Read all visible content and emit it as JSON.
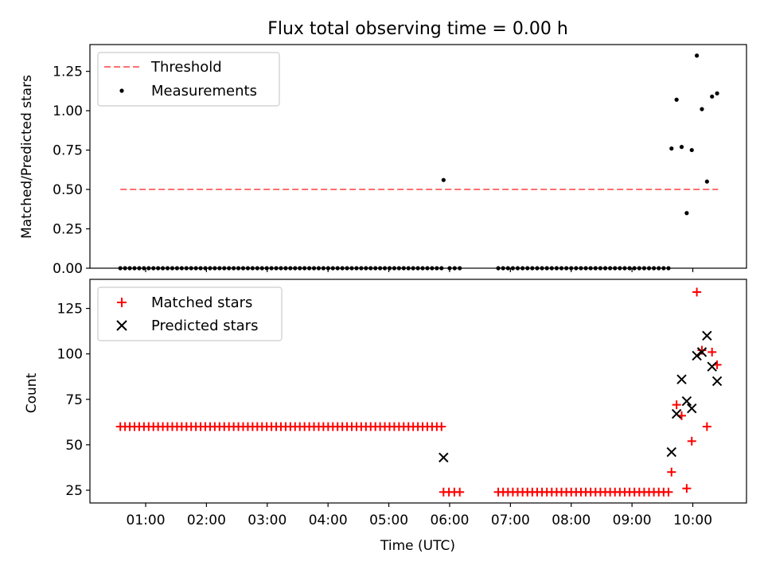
{
  "chart_data": [
    {
      "type": "scatter",
      "title": "Flux total observing time = 0.00 h",
      "ylabel": "Matched/Predicted stars",
      "xlabel": "",
      "ylim": [
        0,
        1.42
      ],
      "yticks": [
        "0.00",
        "0.25",
        "0.50",
        "0.75",
        "1.00",
        "1.25"
      ],
      "ytick_values": [
        0,
        0.25,
        0.5,
        0.75,
        1.0,
        1.25
      ],
      "legend": {
        "placement": "top-left",
        "entries": [
          "Threshold",
          "Measurements"
        ]
      },
      "colors": {
        "threshold": "#ff7070",
        "measurements": "#000000"
      },
      "threshold": {
        "name": "Threshold",
        "value": 0.5,
        "x_start": "00:35",
        "x_end": "10:25"
      },
      "measurements": {
        "name": "Measurements",
        "zero_segments": [
          {
            "start": "00:35",
            "end": "05:52",
            "count": 69
          },
          {
            "start": "06:00",
            "end": "06:10",
            "count": 3
          },
          {
            "start": "06:48",
            "end": "09:36",
            "count": 36
          }
        ],
        "points": [
          {
            "x": "05:54",
            "y": 0.56
          },
          {
            "x": "09:39",
            "y": 0.76
          },
          {
            "x": "09:44",
            "y": 1.07
          },
          {
            "x": "09:49",
            "y": 0.77
          },
          {
            "x": "09:54",
            "y": 0.35
          },
          {
            "x": "09:59",
            "y": 0.75
          },
          {
            "x": "10:04",
            "y": 1.35
          },
          {
            "x": "10:09",
            "y": 1.01
          },
          {
            "x": "10:14",
            "y": 0.55
          },
          {
            "x": "10:19",
            "y": 1.09
          },
          {
            "x": "10:24",
            "y": 1.11
          }
        ]
      }
    },
    {
      "type": "scatter",
      "ylabel": "Count",
      "xlabel": "Time (UTC)",
      "xlim": [
        "00:05",
        "10:53"
      ],
      "xticks": [
        "01:00",
        "02:00",
        "03:00",
        "04:00",
        "05:00",
        "06:00",
        "07:00",
        "08:00",
        "09:00",
        "10:00"
      ],
      "ylim": [
        18,
        141
      ],
      "yticks": [
        "25",
        "50",
        "75",
        "100",
        "125"
      ],
      "ytick_values": [
        25,
        50,
        75,
        100,
        125
      ],
      "legend": {
        "placement": "top-left",
        "entries": [
          "Matched stars",
          "Predicted stars"
        ]
      },
      "colors": {
        "matched": "#ff0000",
        "predicted": "#000000"
      },
      "matched": {
        "name": "Matched stars",
        "constant_segments": [
          {
            "start": "00:35",
            "end": "05:52",
            "count": 69,
            "value": 60
          },
          {
            "start": "05:54",
            "end": "06:10",
            "count": 4,
            "value": 24
          },
          {
            "start": "06:48",
            "end": "09:36",
            "count": 36,
            "value": 24
          }
        ],
        "points": [
          {
            "x": "09:39",
            "y": 35
          },
          {
            "x": "09:44",
            "y": 72
          },
          {
            "x": "09:49",
            "y": 66
          },
          {
            "x": "09:54",
            "y": 26
          },
          {
            "x": "09:59",
            "y": 52
          },
          {
            "x": "10:04",
            "y": 134
          },
          {
            "x": "10:09",
            "y": 102
          },
          {
            "x": "10:14",
            "y": 60
          },
          {
            "x": "10:19",
            "y": 101
          },
          {
            "x": "10:24",
            "y": 94
          }
        ]
      },
      "predicted": {
        "name": "Predicted stars",
        "points": [
          {
            "x": "05:54",
            "y": 43
          },
          {
            "x": "09:39",
            "y": 46
          },
          {
            "x": "09:44",
            "y": 67
          },
          {
            "x": "09:49",
            "y": 86
          },
          {
            "x": "09:54",
            "y": 74
          },
          {
            "x": "09:59",
            "y": 70
          },
          {
            "x": "10:04",
            "y": 99
          },
          {
            "x": "10:09",
            "y": 101
          },
          {
            "x": "10:14",
            "y": 110
          },
          {
            "x": "10:19",
            "y": 93
          },
          {
            "x": "10:24",
            "y": 85
          }
        ]
      }
    }
  ]
}
